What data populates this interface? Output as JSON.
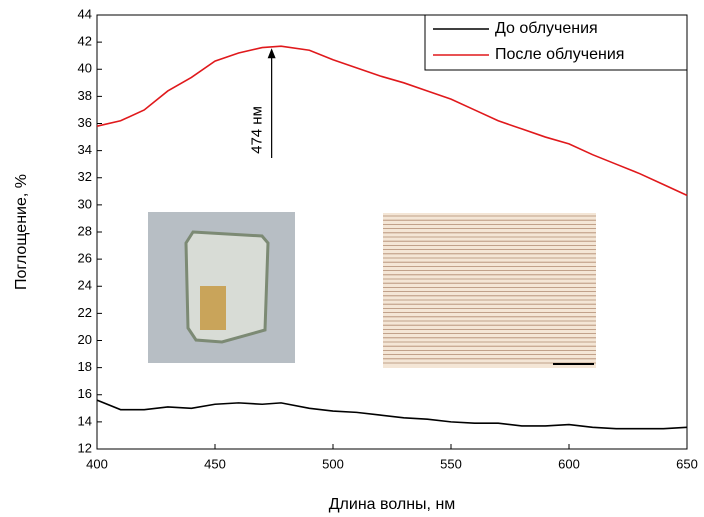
{
  "chart_data": {
    "type": "line",
    "xlabel": "Длина волны, нм",
    "ylabel": "Поглощение, %",
    "x": [
      400,
      410,
      420,
      430,
      440,
      450,
      460,
      470,
      478,
      490,
      500,
      510,
      520,
      530,
      540,
      550,
      560,
      570,
      580,
      590,
      600,
      610,
      620,
      630,
      640,
      650
    ],
    "series": [
      {
        "name": "До облучения",
        "color": "#000000",
        "values": [
          15.6,
          14.9,
          14.9,
          15.1,
          15.0,
          15.3,
          15.4,
          15.3,
          15.4,
          15.0,
          14.8,
          14.7,
          14.5,
          14.3,
          14.2,
          14.0,
          13.9,
          13.9,
          13.7,
          13.7,
          13.8,
          13.6,
          13.5,
          13.5,
          13.5,
          13.6
        ]
      },
      {
        "name": "После облучения",
        "color": "#e0191c",
        "values": [
          35.8,
          36.2,
          37.0,
          38.4,
          39.4,
          40.6,
          41.2,
          41.6,
          41.7,
          41.4,
          40.7,
          40.1,
          39.5,
          39.0,
          38.4,
          37.8,
          37.0,
          36.2,
          35.6,
          35.0,
          34.5,
          33.7,
          33.0,
          32.3,
          31.5,
          30.7
        ]
      }
    ],
    "xlim": [
      400,
      650
    ],
    "xticks": [
      400,
      450,
      500,
      550,
      600,
      650
    ],
    "ylim": [
      12,
      44
    ],
    "yticks": [
      12,
      14,
      16,
      18,
      20,
      22,
      24,
      26,
      28,
      30,
      32,
      34,
      36,
      38,
      40,
      42,
      44
    ],
    "legend": "upper right",
    "annotations": [
      {
        "text": "474 нм",
        "x": 474,
        "y": 41.7
      }
    ]
  }
}
